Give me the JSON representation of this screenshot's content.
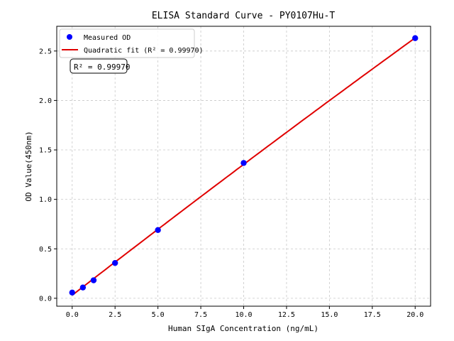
{
  "chart_data": {
    "type": "scatter",
    "title": "ELISA Standard Curve - PY0107Hu-T",
    "xlabel": "Human SIgA Concentration (ng/mL)",
    "ylabel": "OD Value(450nm)",
    "xlim": [
      -0.9,
      20.9
    ],
    "ylim": [
      -0.08,
      2.75
    ],
    "xticks": [
      0.0,
      2.5,
      5.0,
      7.5,
      10.0,
      12.5,
      15.0,
      17.5,
      20.0
    ],
    "xtick_labels": [
      "0.0",
      "2.5",
      "5.0",
      "7.5",
      "10.0",
      "12.5",
      "15.0",
      "17.5",
      "20.0"
    ],
    "yticks": [
      0.0,
      0.5,
      1.0,
      1.5,
      2.0,
      2.5
    ],
    "ytick_labels": [
      "0.0",
      "0.5",
      "1.0",
      "1.5",
      "2.0",
      "2.5"
    ],
    "grid": true,
    "legend_placement": "top-left",
    "series": [
      {
        "name": "Measured OD",
        "kind": "scatter",
        "color": "#0000ff",
        "x": [
          0,
          0.625,
          1.25,
          2.5,
          5,
          10,
          20
        ],
        "y": [
          0.058,
          0.109,
          0.182,
          0.357,
          0.69,
          1.368,
          2.63
        ]
      },
      {
        "name": "Quadratic fit (R² = 0.99970)",
        "kind": "line",
        "color": "#e00000"
      }
    ],
    "annotation": "R² = 0.99970"
  }
}
